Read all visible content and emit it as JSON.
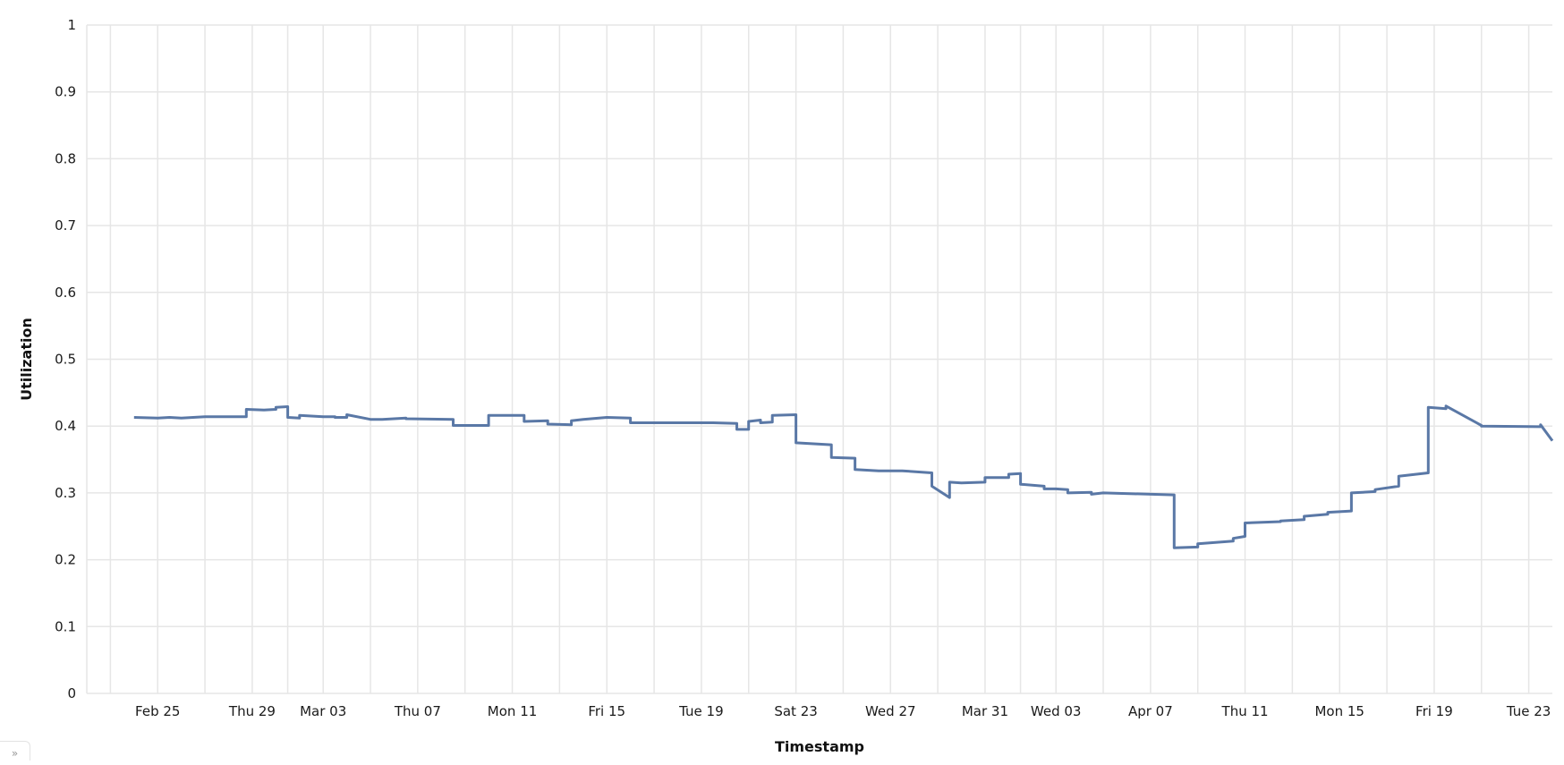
{
  "chart_data": {
    "type": "line",
    "xlabel": "Timestamp",
    "ylabel": "Utilization",
    "ylim": [
      0,
      1
    ],
    "yticks": [
      0,
      0.1,
      0.2,
      0.3,
      0.4,
      0.5,
      0.6,
      0.7,
      0.8,
      0.9,
      1
    ],
    "ytick_labels": [
      "0",
      "0.1",
      "0.2",
      "0.3",
      "0.4",
      "0.5",
      "0.6",
      "0.7",
      "0.8",
      "0.9",
      "1"
    ],
    "xlim": [
      "2024-02-22",
      "2024-04-24"
    ],
    "xticks": [
      "2024-02-25",
      "2024-02-29",
      "2024-03-03",
      "2024-03-07",
      "2024-03-11",
      "2024-03-15",
      "2024-03-19",
      "2024-03-23",
      "2024-03-27",
      "2024-03-31",
      "2024-04-03",
      "2024-04-07",
      "2024-04-11",
      "2024-04-15",
      "2024-04-19",
      "2024-04-23"
    ],
    "xtick_labels": [
      "Feb 25",
      "Thu 29",
      "Mar 03",
      "Thu 07",
      "Mon 11",
      "Fri 15",
      "Tue 19",
      "Sat 23",
      "Wed 27",
      "Mar 31",
      "Wed 03",
      "Apr 07",
      "Thu 11",
      "Mon 15",
      "Fri 19",
      "Tue 23"
    ],
    "grid": true,
    "series": [
      {
        "color": "#5a78a6",
        "x": [
          "2024-02-24 00:00",
          "2024-02-25 00:00",
          "2024-02-25 12:00",
          "2024-02-26 00:00",
          "2024-02-26 12:00",
          "2024-02-27 00:00",
          "2024-02-28 18:00",
          "2024-02-28 18:00",
          "2024-02-29 12:00",
          "2024-03-01 00:00",
          "2024-03-01 00:00",
          "2024-03-01 12:00",
          "2024-03-01 12:00",
          "2024-03-02 00:00",
          "2024-03-02 00:00",
          "2024-03-03 00:00",
          "2024-03-03 12:00",
          "2024-03-03 12:00",
          "2024-03-04 00:00",
          "2024-03-04 00:00",
          "2024-03-05 00:00",
          "2024-03-05 12:00",
          "2024-03-06 12:00",
          "2024-03-06 12:00",
          "2024-03-08 12:00",
          "2024-03-08 12:00",
          "2024-03-09 00:00",
          "2024-03-10 00:00",
          "2024-03-10 00:00",
          "2024-03-11 12:00",
          "2024-03-11 12:00",
          "2024-03-12 12:00",
          "2024-03-12 12:00",
          "2024-03-13 12:00",
          "2024-03-13 12:00",
          "2024-03-14 00:00",
          "2024-03-15 00:00",
          "2024-03-16 00:00",
          "2024-03-16 00:00",
          "2024-03-17 12:00",
          "2024-03-18 12:00",
          "2024-03-19 12:00",
          "2024-03-20 12:00",
          "2024-03-20 12:00",
          "2024-03-21 00:00",
          "2024-03-21 00:00",
          "2024-03-21 12:00",
          "2024-03-21 12:00",
          "2024-03-22 00:00",
          "2024-03-22 00:00",
          "2024-03-23 00:00",
          "2024-03-23 00:00",
          "2024-03-24 12:00",
          "2024-03-24 12:00",
          "2024-03-25 12:00",
          "2024-03-25 12:00",
          "2024-03-26 12:00",
          "2024-03-27 12:00",
          "2024-03-28 18:00",
          "2024-03-28 18:00",
          "2024-03-29 12:00",
          "2024-03-29 12:00",
          "2024-03-30 00:00",
          "2024-03-31 00:00",
          "2024-03-31 00:00",
          "2024-04-01 00:00",
          "2024-04-01 00:00",
          "2024-04-01 12:00",
          "2024-04-01 12:00",
          "2024-04-02 12:00",
          "2024-04-02 12:00",
          "2024-04-03 00:00",
          "2024-04-03 12:00",
          "2024-04-03 12:00",
          "2024-04-04 12:00",
          "2024-04-04 12:00",
          "2024-04-05 00:00",
          "2024-04-08 00:00",
          "2024-04-08 00:00",
          "2024-04-09 00:00",
          "2024-04-09 00:00",
          "2024-04-10 12:00",
          "2024-04-10 12:00",
          "2024-04-11 00:00",
          "2024-04-11 00:00",
          "2024-04-12 12:00",
          "2024-04-12 12:00",
          "2024-04-13 12:00",
          "2024-04-13 12:00",
          "2024-04-14 12:00",
          "2024-04-14 12:00",
          "2024-04-15 12:00",
          "2024-04-15 12:00",
          "2024-04-16 12:00",
          "2024-04-16 12:00",
          "2024-04-17 12:00",
          "2024-04-17 12:00",
          "2024-04-17 12:00",
          "2024-04-17 12:00",
          "2024-04-18 18:00",
          "2024-04-18 18:00",
          "2024-04-19 12:00",
          "2024-04-19 12:00",
          "2024-04-21 00:00",
          "2024-04-21 00:00",
          "2024-04-23 12:00",
          "2024-04-23 12:00",
          "2024-04-24 00:00"
        ],
        "y": [
          0.413,
          0.412,
          0.413,
          0.412,
          0.413,
          0.414,
          0.414,
          0.425,
          0.424,
          0.425,
          0.428,
          0.429,
          0.413,
          0.412,
          0.416,
          0.414,
          0.414,
          0.413,
          0.413,
          0.417,
          0.41,
          0.41,
          0.412,
          0.411,
          0.41,
          0.401,
          0.401,
          0.401,
          0.416,
          0.416,
          0.407,
          0.408,
          0.403,
          0.402,
          0.408,
          0.41,
          0.413,
          0.412,
          0.405,
          0.405,
          0.405,
          0.405,
          0.404,
          0.395,
          0.395,
          0.407,
          0.409,
          0.405,
          0.406,
          0.416,
          0.417,
          0.375,
          0.372,
          0.353,
          0.352,
          0.335,
          0.333,
          0.333,
          0.33,
          0.31,
          0.293,
          0.316,
          0.315,
          0.316,
          0.323,
          0.323,
          0.328,
          0.329,
          0.313,
          0.31,
          0.306,
          0.306,
          0.305,
          0.3,
          0.301,
          0.298,
          0.3,
          0.297,
          0.218,
          0.219,
          0.224,
          0.228,
          0.232,
          0.235,
          0.255,
          0.257,
          0.258,
          0.26,
          0.265,
          0.268,
          0.271,
          0.273,
          0.3,
          0.302,
          0.305,
          0.31,
          0.315,
          0.318,
          0.325,
          0.33,
          0.428,
          0.426,
          0.43,
          0.401,
          0.4,
          0.399,
          0.402,
          0.378
        ]
      }
    ]
  }
}
